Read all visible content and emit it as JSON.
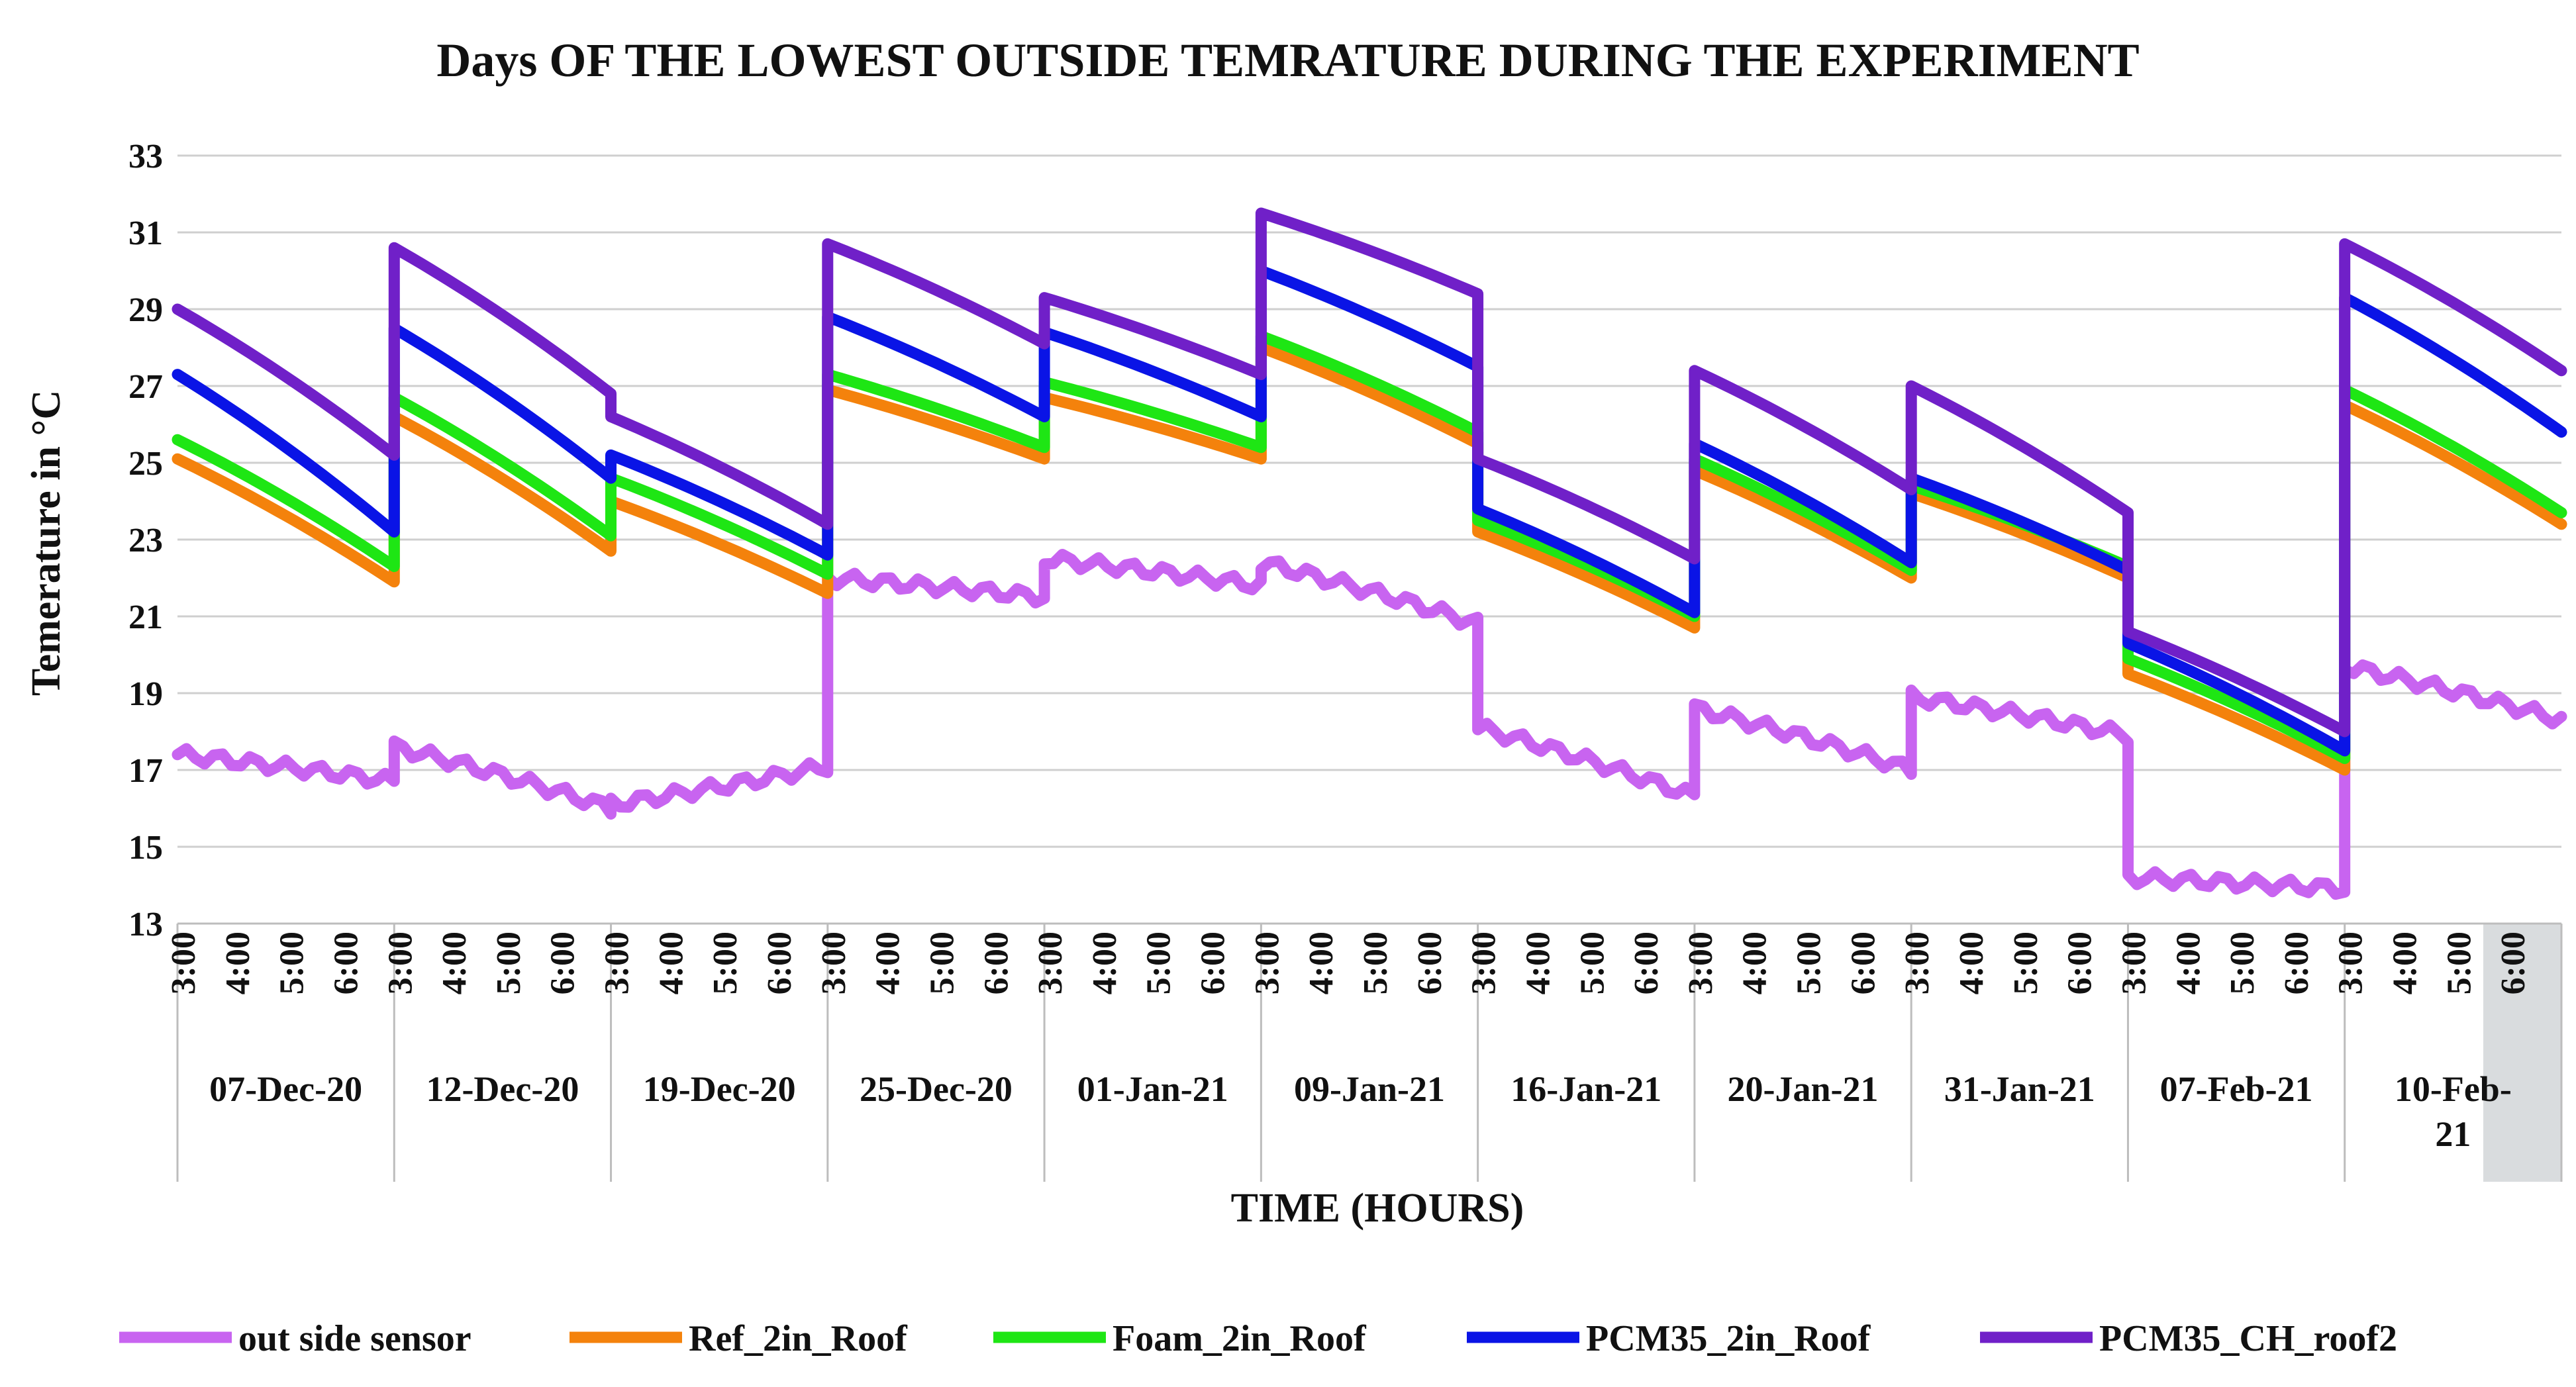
{
  "chart_data": {
    "type": "line",
    "title": "Days OF THE LOWEST OUTSIDE TEMRATURE DURING THE EXPERIMENT",
    "xlabel": "TIME (HOURS)",
    "ylabel": "Temerature in °C",
    "ylim": [
      13,
      33
    ],
    "yticks": [
      "13",
      "15",
      "17",
      "19",
      "21",
      "23",
      "25",
      "27",
      "29",
      "31",
      "33"
    ],
    "hour_labels": [
      "3:00",
      "4:00",
      "5:00",
      "6:00"
    ],
    "days": [
      "07-Dec-20",
      "12-Dec-20",
      "19-Dec-20",
      "25-Dec-20",
      "01-Jan-21",
      "09-Jan-21",
      "16-Jan-21",
      "20-Jan-21",
      "31-Jan-21",
      "07-Feb-21",
      "10-Feb-21"
    ],
    "series": [
      {
        "name": "out side sensor",
        "color": "#c864f0",
        "start": [
          17.4,
          17.6,
          16.1,
          22.0,
          22.5,
          22.4,
          18.1,
          18.6,
          18.9,
          14.2,
          19.7
        ],
        "end": [
          16.7,
          16.0,
          17.1,
          21.5,
          21.8,
          20.8,
          16.3,
          17.0,
          17.9,
          13.9,
          18.3
        ]
      },
      {
        "name": "Ref_2in_Roof",
        "color": "#f4820c",
        "start": [
          25.1,
          26.2,
          24.0,
          26.9,
          26.7,
          28.0,
          23.2,
          24.8,
          24.2,
          19.5,
          26.5
        ],
        "end": [
          21.9,
          22.7,
          21.6,
          25.1,
          25.1,
          25.5,
          20.7,
          22.0,
          22.0,
          17.0,
          23.4
        ]
      },
      {
        "name": "Foam_2in_Roof",
        "color": "#1ee614",
        "start": [
          25.6,
          26.7,
          24.6,
          27.3,
          27.1,
          28.3,
          23.5,
          25.1,
          24.4,
          19.9,
          26.9
        ],
        "end": [
          22.3,
          23.1,
          22.1,
          25.4,
          25.4,
          25.8,
          21.0,
          22.2,
          22.3,
          17.3,
          23.7
        ]
      },
      {
        "name": "PCM35_2in_Roof",
        "color": "#0a14e6",
        "start": [
          27.3,
          28.5,
          25.2,
          28.8,
          28.4,
          30.0,
          23.8,
          25.5,
          24.6,
          20.3,
          29.3
        ],
        "end": [
          23.2,
          24.6,
          22.6,
          26.2,
          26.2,
          27.5,
          21.1,
          22.4,
          22.2,
          17.5,
          25.8
        ]
      },
      {
        "name": "PCM35_CH_roof2",
        "color": "#7020c8",
        "start": [
          29.0,
          30.6,
          26.2,
          30.7,
          29.3,
          31.5,
          25.1,
          27.4,
          27.0,
          20.6,
          30.7
        ],
        "end": [
          25.2,
          26.8,
          23.4,
          28.1,
          27.3,
          29.4,
          22.5,
          24.3,
          23.7,
          18.0,
          27.4
        ]
      }
    ]
  }
}
